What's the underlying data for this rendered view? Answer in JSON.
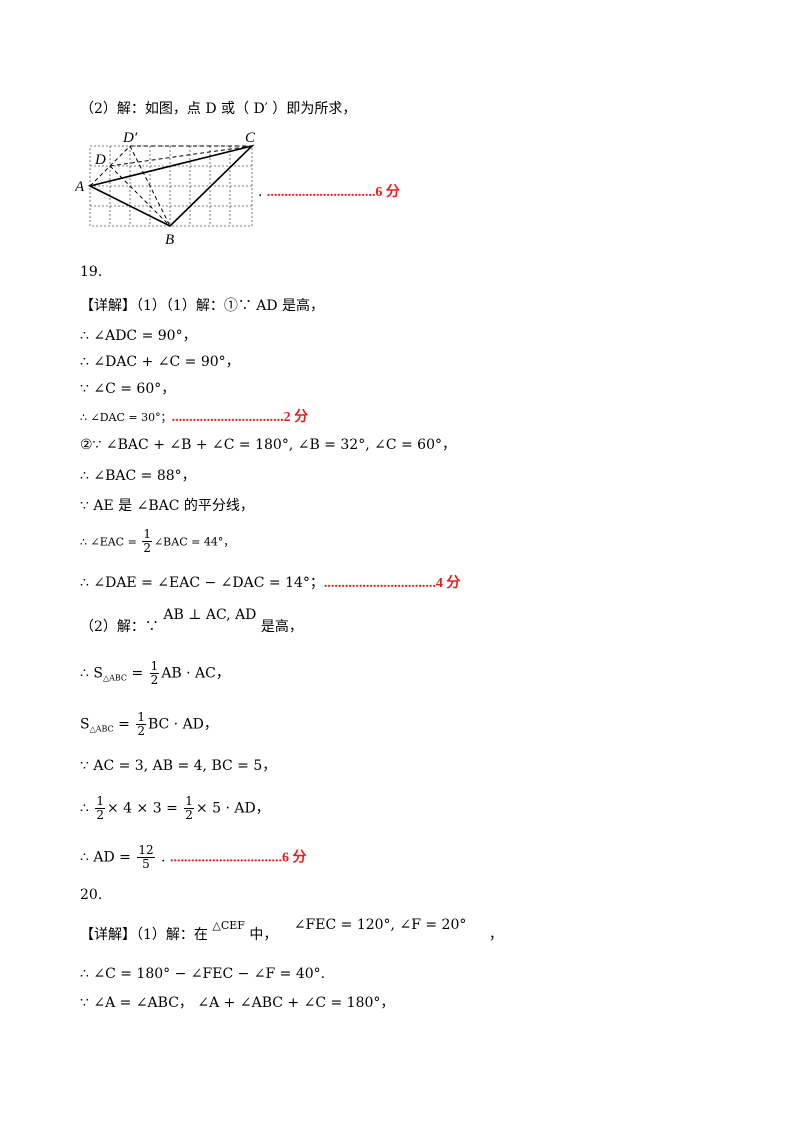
{
  "part2_line": "（2）解：如图，点 D 或（ D′ ）即为所求，",
  "figure": {
    "labels": {
      "A": "A",
      "B": "B",
      "C": "C",
      "D": "D",
      "Dp": "D′"
    },
    "score": "...............................6 分"
  },
  "q19": {
    "number": "19.",
    "l1": "【详解】（1）（1）解：①∵ AD 是高，",
    "l2": "∴ ∠ADC = 90°，",
    "l3": "∴ ∠DAC + ∠C = 90°，",
    "l4": "∵ ∠C = 60°，",
    "l5": "∴ ∠DAC = 30°；",
    "s1": "................................2 分",
    "l6": "②∵ ∠BAC + ∠B + ∠C = 180°, ∠B = 32°, ∠C = 60°，",
    "l7": "∴ ∠BAC = 88°，",
    "l8": "∵ AE 是 ∠BAC 的平分线，",
    "l9a": "∴ ∠EAC = ",
    "l9n": "1",
    "l9d": "2",
    "l9b": "∠BAC = 44°，",
    "l10": "∴ ∠DAE = ∠EAC − ∠DAC = 14°；",
    "s2": "................................4 分",
    "l11a": "（2）解：∵",
    "l11b": "AB ⊥ AC, AD",
    "l11c": "是高，",
    "l12a": "∴ S",
    "l12sub": "△ABC",
    "l12b": " = ",
    "l12c": "AB · AC，",
    "l13a": "S",
    "l13sub": "△ABC",
    "l13b": " = ",
    "l13c": "BC · AD，",
    "l14": "∵ AC = 3, AB = 4, BC = 5，",
    "l15a": "∴ ",
    "l15b": "× 4 × 3 = ",
    "l15c": "× 5 · AD，",
    "l16a": "∴ AD = ",
    "l16n": "12",
    "l16d": "5",
    "l16b": " . ",
    "s3": "................................6 分",
    "half_n": "1",
    "half_d": "2"
  },
  "q20": {
    "number": "20.",
    "l1a": "【详解】（1）解：在",
    "l1b": "△CEF",
    "l1c": "中，",
    "l1d": "∠FEC = 120°, ∠F = 20°",
    "l1e": "，",
    "l2": "∴ ∠C = 180° − ∠FEC − ∠F = 40°.",
    "l3": "∵ ∠A = ∠ABC， ∠A + ∠ABC + ∠C = 180°，"
  }
}
